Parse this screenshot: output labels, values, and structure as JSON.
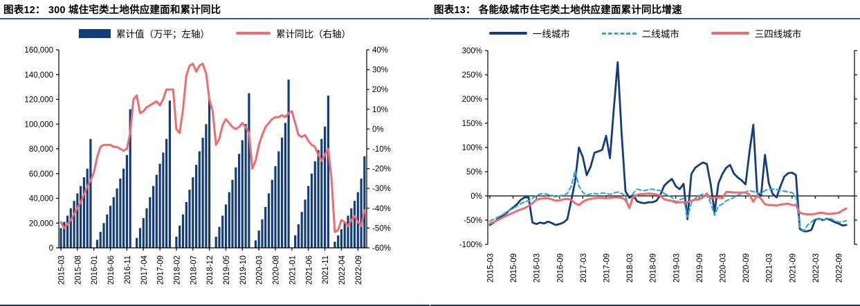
{
  "colors": {
    "navy": "#133d7a",
    "pink": "#f4696c",
    "light_blue": "#2ea8e0",
    "title_rule": "#2f5597",
    "bottom_rule": "#1f3864",
    "axis": "#000000"
  },
  "figure12": {
    "title": "图表12： 300 城住宅类土地供应建面和累计同比",
    "legend": [
      {
        "label": "累计值（万平；左轴）",
        "type": "bar",
        "color": "#133d7a"
      },
      {
        "label": "累计同比（右轴）",
        "type": "line",
        "color": "#f4696c"
      }
    ],
    "left_axis_ticks": [
      "160,000",
      "140,000",
      "120,000",
      "100,000",
      "80,000",
      "60,000",
      "40,000",
      "20,000",
      "0"
    ],
    "right_axis_ticks": [
      "40%",
      "30%",
      "20%",
      "10%",
      "0%",
      "-10%",
      "-20%",
      "-30%",
      "-40%",
      "-50%",
      "-60%"
    ],
    "x_labels": [
      "2015-03",
      "2015-08",
      "2016-01",
      "2016-06",
      "2016-11",
      "2017-04",
      "2017-09",
      "2018-02",
      "2018-07",
      "2018-12",
      "2019-05",
      "2019-10",
      "2020-03",
      "2020-08",
      "2021-01",
      "2021-06",
      "2021-11",
      "2022-04",
      "2022-09"
    ],
    "chart_data": {
      "type": "combo-bar-line",
      "x_start": "2015-03",
      "x_end": "2022-11",
      "x_interval": "monthly",
      "left_ylim": [
        0,
        160000
      ],
      "right_ylim": [
        -60,
        40
      ],
      "bar_series": {
        "name": "累计值（万平；左轴）",
        "values": [
          16000,
          21000,
          26000,
          32000,
          38000,
          44000,
          50000,
          57000,
          64000,
          88000,
          null,
          6500,
          13000,
          20000,
          27000,
          34000,
          41000,
          48000,
          56000,
          64000,
          75000,
          112000,
          null,
          8000,
          16000,
          24000,
          32000,
          41000,
          50000,
          59000,
          68000,
          77000,
          88000,
          119000,
          null,
          9000,
          18000,
          27000,
          37000,
          47000,
          57000,
          67000,
          78000,
          89000,
          100000,
          120000,
          null,
          9000,
          17000,
          26000,
          35000,
          45000,
          55000,
          65000,
          76000,
          87000,
          100000,
          125000,
          null,
          6000,
          14000,
          23000,
          33000,
          44000,
          55000,
          66000,
          78000,
          89000,
          101000,
          136000,
          null,
          10000,
          19000,
          29000,
          39000,
          50000,
          60000,
          70000,
          79000,
          88000,
          98000,
          123000,
          null,
          5000,
          10000,
          15000,
          20000,
          26000,
          32000,
          38000,
          45000,
          56000,
          74000
        ]
      },
      "line_series": {
        "name": "累计同比（右轴）",
        "unit": "%",
        "values": [
          -47,
          -50,
          -48,
          -46,
          -43,
          -40,
          -37,
          -33,
          -29,
          -26,
          -22,
          -14,
          -9,
          -8,
          -8,
          -8,
          -9,
          -9,
          -10,
          -11,
          -10,
          -2,
          15,
          17,
          8,
          9,
          11,
          12,
          13,
          14,
          12,
          15,
          20,
          20,
          20,
          0,
          -2,
          10,
          27,
          32,
          33,
          29,
          32,
          33,
          28,
          15,
          9,
          -8,
          -5,
          2,
          5,
          3,
          1,
          0,
          1,
          3,
          1,
          -2,
          -20,
          -16,
          -8,
          -3,
          1,
          3,
          5,
          6,
          6,
          7,
          6,
          8,
          9,
          3,
          -3,
          -4,
          -3,
          -6,
          -8,
          -9,
          -13,
          -16,
          -13,
          -10,
          -25,
          -52,
          -51,
          -46,
          -47,
          -49,
          -46,
          -44,
          -47,
          -49,
          -41
        ]
      }
    }
  },
  "figure13": {
    "title": "图表13： 各能级城市住宅类土地供应建面累计同比增速",
    "legend": [
      {
        "label": "一线城市",
        "type": "line",
        "color": "#133d7a"
      },
      {
        "label": "二线城市",
        "type": "dashed-line",
        "color": "#2ea8e0"
      },
      {
        "label": "三四线城市",
        "type": "line",
        "color": "#f4696c"
      }
    ],
    "y_axis_ticks": [
      "300%",
      "250%",
      "200%",
      "150%",
      "100%",
      "50%",
      "0%",
      "-50%",
      "-100%"
    ],
    "x_labels": [
      "2015-03",
      "2015-09",
      "2016-03",
      "2016-09",
      "2017-03",
      "2017-09",
      "2018-03",
      "2018-09",
      "2019-03",
      "2019-09",
      "2020-03",
      "2020-09",
      "2021-03",
      "2021-09",
      "2022-03",
      "2022-09"
    ],
    "chart_data": {
      "type": "line",
      "x_start": "2015-03",
      "x_end": "2022-11",
      "x_interval": "monthly",
      "ylim": [
        -100,
        300
      ],
      "unit": "%",
      "series": [
        {
          "name": "一线城市",
          "color": "#133d7a",
          "style": "solid",
          "width": 2.8,
          "values": [
            -60,
            -55,
            -48,
            -42,
            -37,
            -30,
            -24,
            -17,
            -8,
            -3,
            -3,
            -55,
            -58,
            -55,
            -57,
            -53,
            -56,
            -60,
            -58,
            -55,
            -48,
            -10,
            30,
            100,
            80,
            43,
            60,
            89,
            92,
            95,
            124,
            78,
            180,
            276,
            130,
            10,
            -4,
            2,
            -11,
            -14,
            -15,
            -13,
            -13,
            -10,
            2,
            21,
            29,
            35,
            20,
            14,
            25,
            -48,
            45,
            58,
            64,
            69,
            66,
            24,
            -33,
            26,
            45,
            58,
            64,
            46,
            38,
            32,
            24,
            90,
            147,
            7,
            0,
            85,
            26,
            4,
            -3,
            20,
            40,
            47,
            48,
            43,
            -68,
            -73,
            -73,
            -70,
            -49,
            -47,
            -50,
            -47,
            -50,
            -54,
            -57,
            -61,
            -60
          ]
        },
        {
          "name": "二线城市",
          "color": "#2ea8e0",
          "style": "dashed",
          "width": 2.2,
          "values": [
            -52,
            -48,
            -44,
            -40,
            -35,
            -30,
            -26,
            -21,
            -16,
            -12,
            -10,
            -5,
            1,
            4,
            5,
            3,
            1,
            -2,
            0,
            2,
            5,
            20,
            52,
            20,
            7,
            2,
            4,
            5,
            4,
            6,
            5,
            3,
            6,
            8,
            5,
            0,
            -28,
            5,
            14,
            12,
            11,
            13,
            14,
            12,
            11,
            5,
            1,
            -3,
            -13,
            -8,
            -5,
            -44,
            -15,
            -5,
            0,
            4,
            2,
            -15,
            -40,
            -21,
            -17,
            -10,
            -7,
            -3,
            2,
            5,
            8,
            11,
            9,
            7,
            5,
            11,
            14,
            14,
            13,
            11,
            10,
            8,
            7,
            0,
            -65,
            -72,
            -60,
            -54,
            -47,
            -48,
            -49,
            -48,
            -47,
            -51,
            -54,
            -53,
            -51
          ]
        },
        {
          "name": "三四线城市",
          "color": "#f4696c",
          "style": "solid",
          "width": 3,
          "values": [
            -57,
            -54,
            -50,
            -46,
            -42,
            -38,
            -35,
            -31,
            -28,
            -25,
            -21,
            -15,
            -8,
            -6,
            -5,
            -5,
            -7,
            -10,
            -9,
            -7,
            -6,
            -8,
            -15,
            -19,
            -12,
            -8,
            -6,
            -5,
            -4,
            -4,
            -5,
            -4,
            -3,
            -3,
            -4,
            -8,
            -25,
            -2,
            2,
            4,
            4,
            5,
            4,
            3,
            1,
            -7,
            -9,
            -10,
            -14,
            -13,
            -13,
            -13,
            -10,
            -8,
            -7,
            -3,
            5,
            -6,
            -3,
            -3,
            -5,
            8,
            8,
            7,
            7,
            7,
            7,
            3,
            -12,
            1,
            -6,
            -17,
            -19,
            -19,
            -20,
            -18,
            -17,
            -16,
            -19,
            -19,
            -35,
            -37,
            -38,
            -38,
            -37,
            -35,
            -35,
            -37,
            -37,
            -36,
            -35,
            -30,
            -26
          ]
        }
      ]
    }
  }
}
